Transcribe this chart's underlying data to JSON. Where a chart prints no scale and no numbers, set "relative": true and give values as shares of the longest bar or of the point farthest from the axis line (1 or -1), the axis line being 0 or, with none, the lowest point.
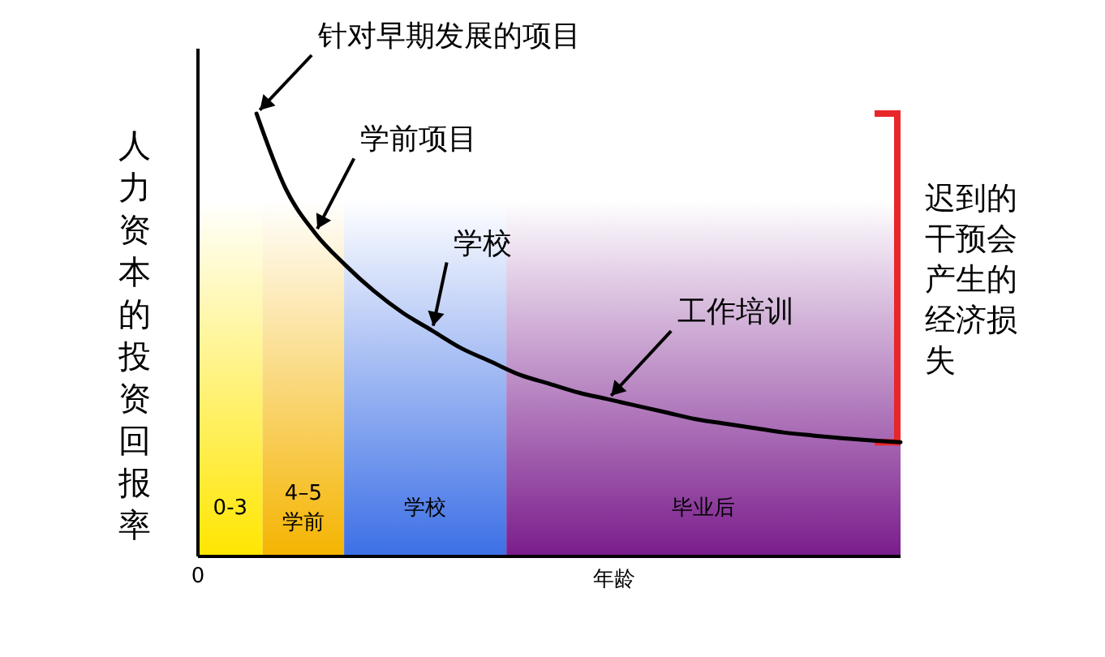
{
  "chart_data": {
    "type": "line",
    "relative": true,
    "xlabel": "年龄",
    "ylabel": "人力资本的投资回报率",
    "categories": [
      null,
      null,
      null,
      null,
      null,
      null,
      null,
      null,
      null,
      null,
      null,
      null,
      null,
      null,
      null,
      null,
      null,
      null,
      null,
      null,
      null,
      null,
      null,
      null,
      null
    ],
    "series": [
      {
        "color": "#000000",
        "values": [
          null,
          null,
          1,
          0.83,
          0.73,
          0.66,
          0.6,
          0.55,
          0.51,
          0.47,
          0.44,
          0.41,
          0.39,
          0.37,
          0.355,
          0.34,
          0.325,
          0.31,
          0.3,
          0.29,
          0.28,
          0.273,
          0.267,
          0.262,
          0.258
        ]
      }
    ],
    "annotations": [
      "针对早期发展的项目",
      "学前项目",
      "学校",
      "工作培训",
      "0-3",
      "4–5\n学前",
      "学校",
      "毕业后",
      "0",
      "迟到的干预会产生的经济损失"
    ]
  }
}
